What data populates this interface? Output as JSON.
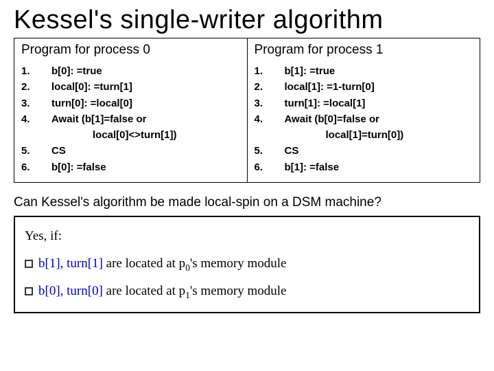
{
  "title": "Kessel's single-writer algorithm",
  "col0": {
    "header": "Program for process 0",
    "steps": {
      "n1": "1.",
      "s1": "b[0]: =true",
      "n2": "2.",
      "s2": "local[0]: =turn[1]",
      "n3": "3.",
      "s3": "turn[0]: =local[0]",
      "n4": "4.",
      "s4": "Await (b[1]=false or",
      "s4b": "local[0]<>turn[1])",
      "n5": "5.",
      "s5": "CS",
      "n6": "6.",
      "s6": "b[0]: =false"
    }
  },
  "col1": {
    "header": "Program for process 1",
    "steps": {
      "n1": "1.",
      "s1": "b[1]: =true",
      "n2": "2.",
      "s2": "local[1]: =1-turn[0]",
      "n3": "3.",
      "s3": "turn[1]: =local[1]",
      "n4": "4.",
      "s4": "Await (b[0]=false or",
      "s4b": "local[1]=turn[0])",
      "n5": "5.",
      "s5": "CS",
      "n6": "6.",
      "s6": "b[1]: =false"
    }
  },
  "question": "Can Kessel's algorithm be made local-spin on a DSM machine?",
  "answer": {
    "lead": "Yes, if:",
    "l1a": "b[1], turn[1]",
    "l1b": " are located at p",
    "l1sub": "0",
    "l1c": "'s memory module",
    "l2a": "b[0], turn[0]",
    "l2b": " are located at p",
    "l2sub": "1",
    "l2c": "'s memory module"
  },
  "colors": {
    "link": "#0000cc",
    "text": "#000000",
    "border": "#000000"
  }
}
